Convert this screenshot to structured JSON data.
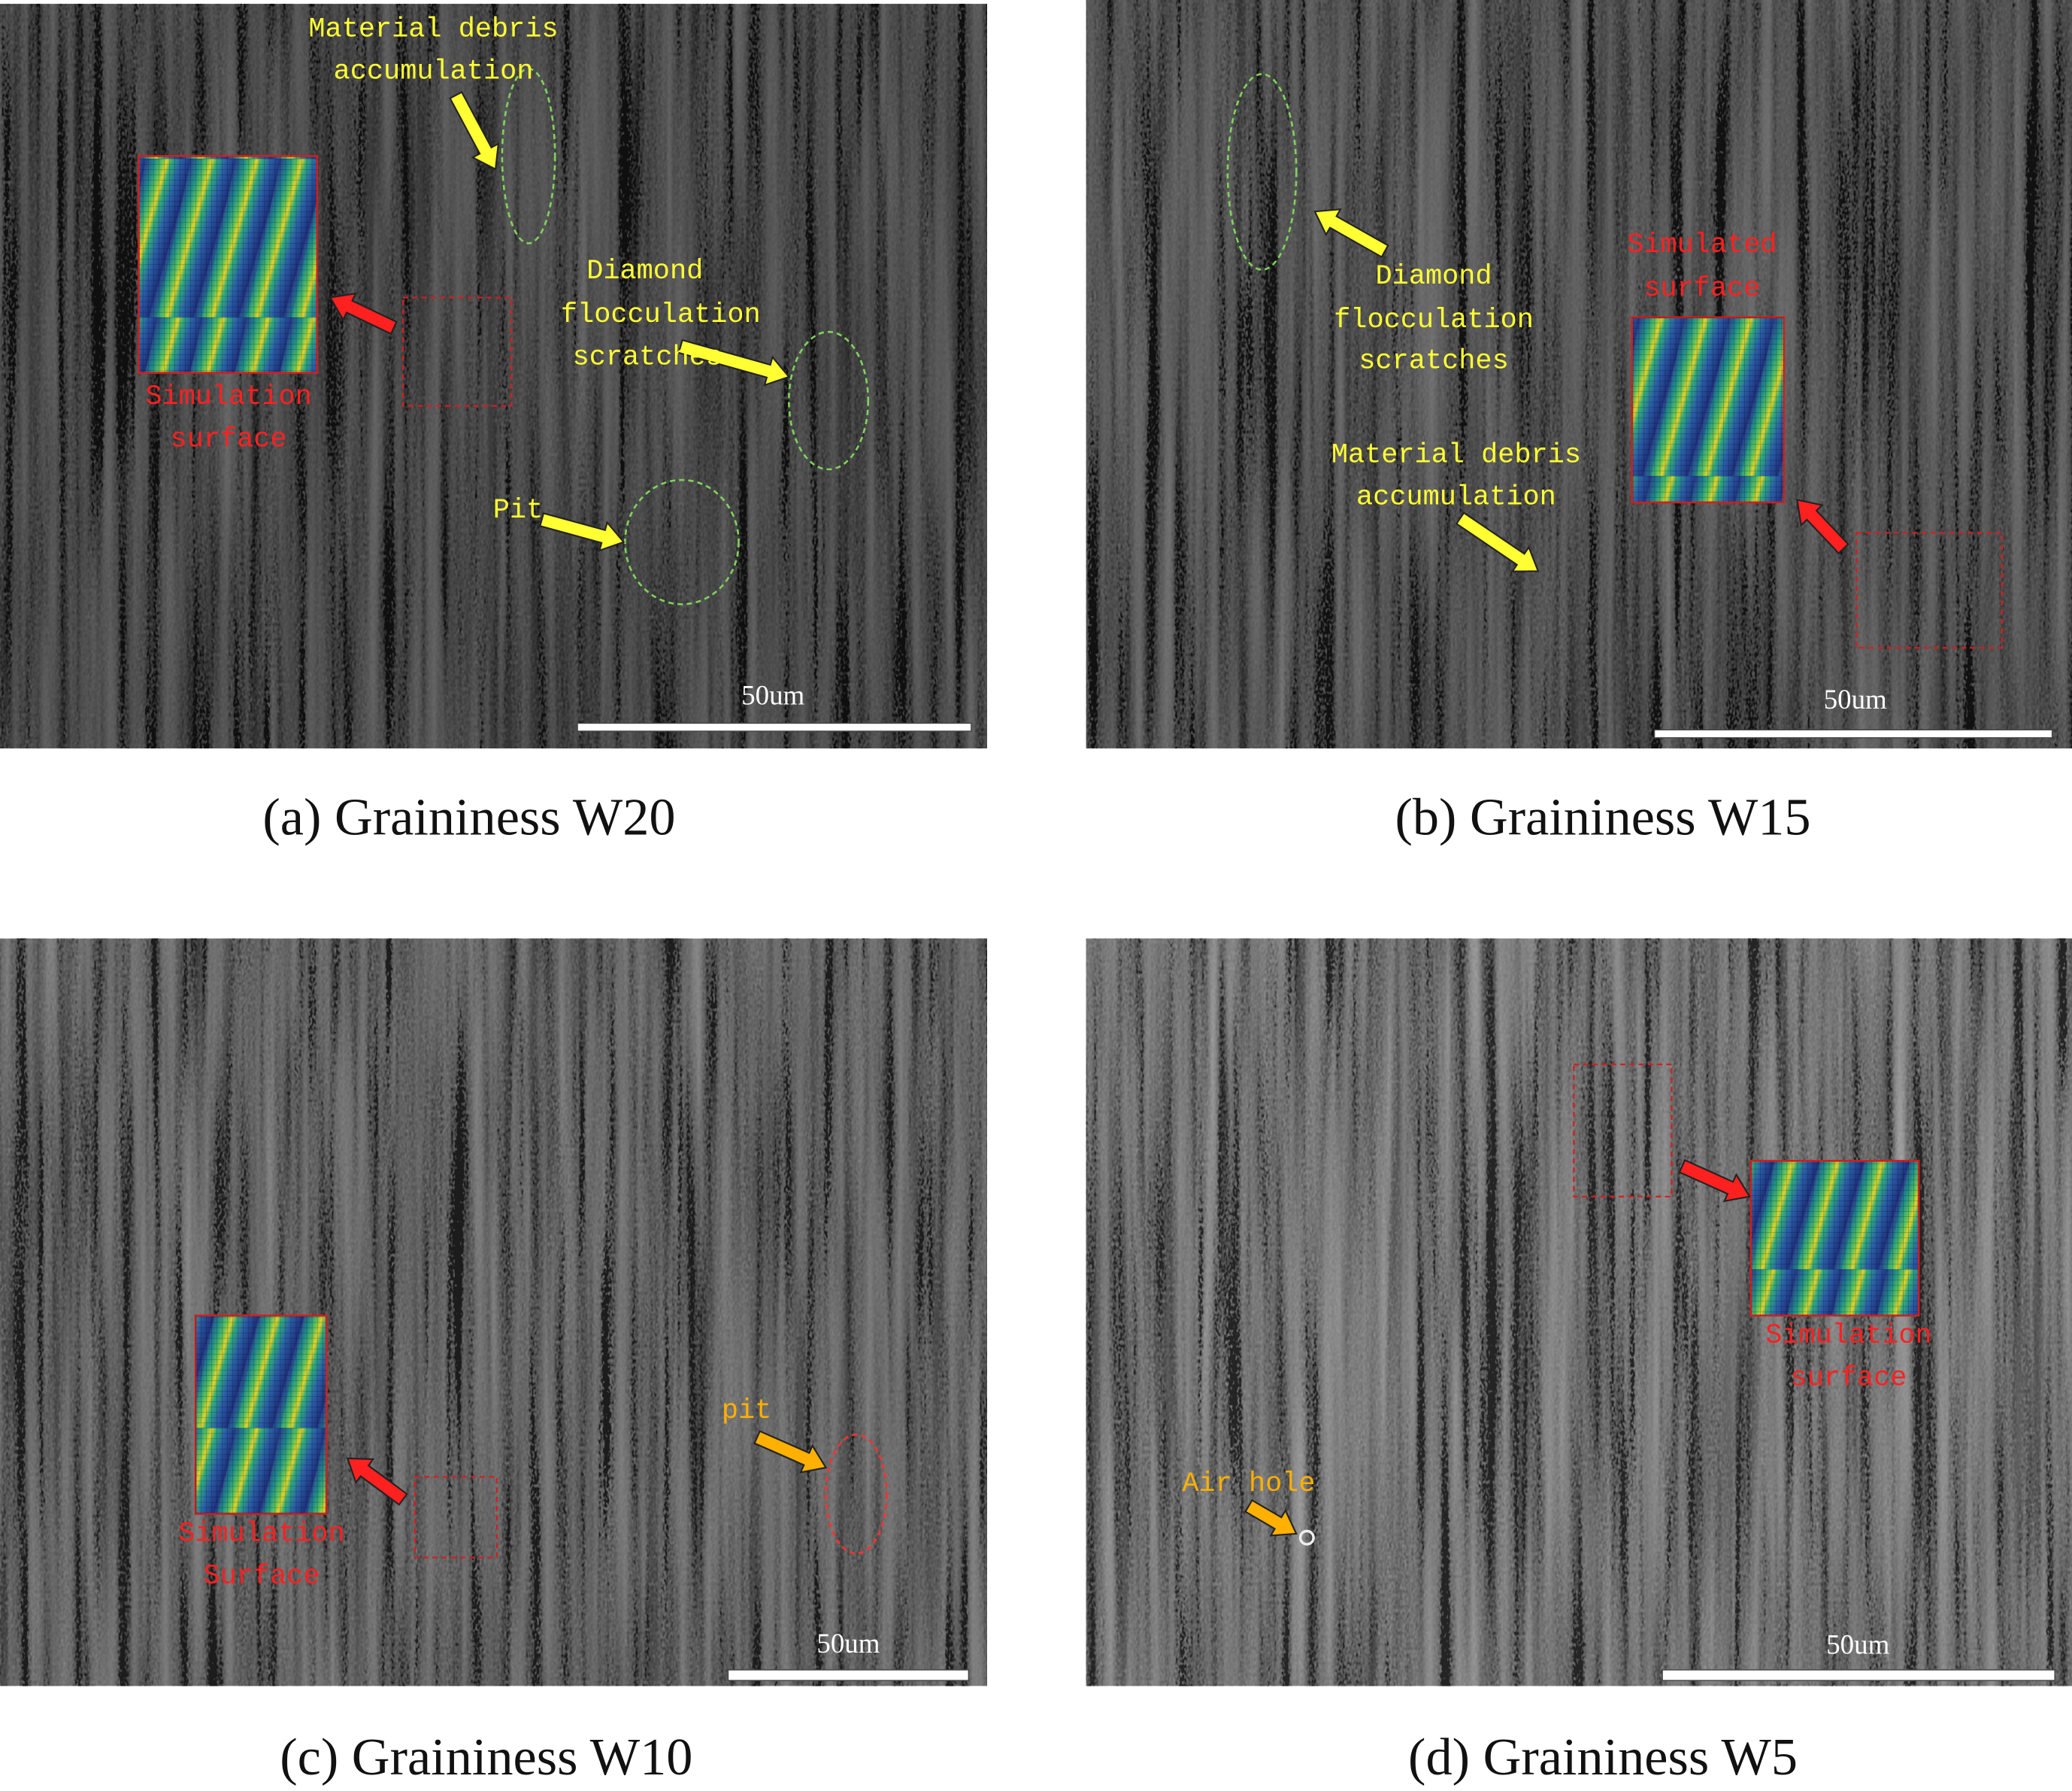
{
  "panels": [
    {
      "caption": "(a) Graininess W20",
      "scale_bar": "50um",
      "annotations": [
        {
          "lines": [
            "Material debris",
            "accumulation"
          ]
        },
        {
          "lines": [
            "Diamond",
            "flocculation",
            "scratches"
          ]
        },
        {
          "lines": [
            "Pit"
          ]
        },
        {
          "lines": [
            "Simulation",
            "surface"
          ]
        }
      ]
    },
    {
      "caption": "(b) Graininess W15",
      "scale_bar": "50um",
      "annotations": [
        {
          "lines": [
            "Diamond",
            "flocculation",
            "scratches"
          ]
        },
        {
          "lines": [
            "Material debris",
            "accumulation"
          ]
        },
        {
          "lines": [
            "Simulated",
            "surface"
          ]
        }
      ]
    },
    {
      "caption": "(c) Graininess W10",
      "scale_bar": "50um",
      "annotations": [
        {
          "lines": [
            "Simulation",
            "Surface"
          ]
        },
        {
          "lines": [
            "pit"
          ]
        }
      ]
    },
    {
      "caption": "(d) Graininess W5",
      "scale_bar": "50um",
      "annotations": [
        {
          "lines": [
            "Simulation",
            "surface"
          ]
        },
        {
          "lines": [
            "Air hole"
          ]
        }
      ]
    }
  ]
}
